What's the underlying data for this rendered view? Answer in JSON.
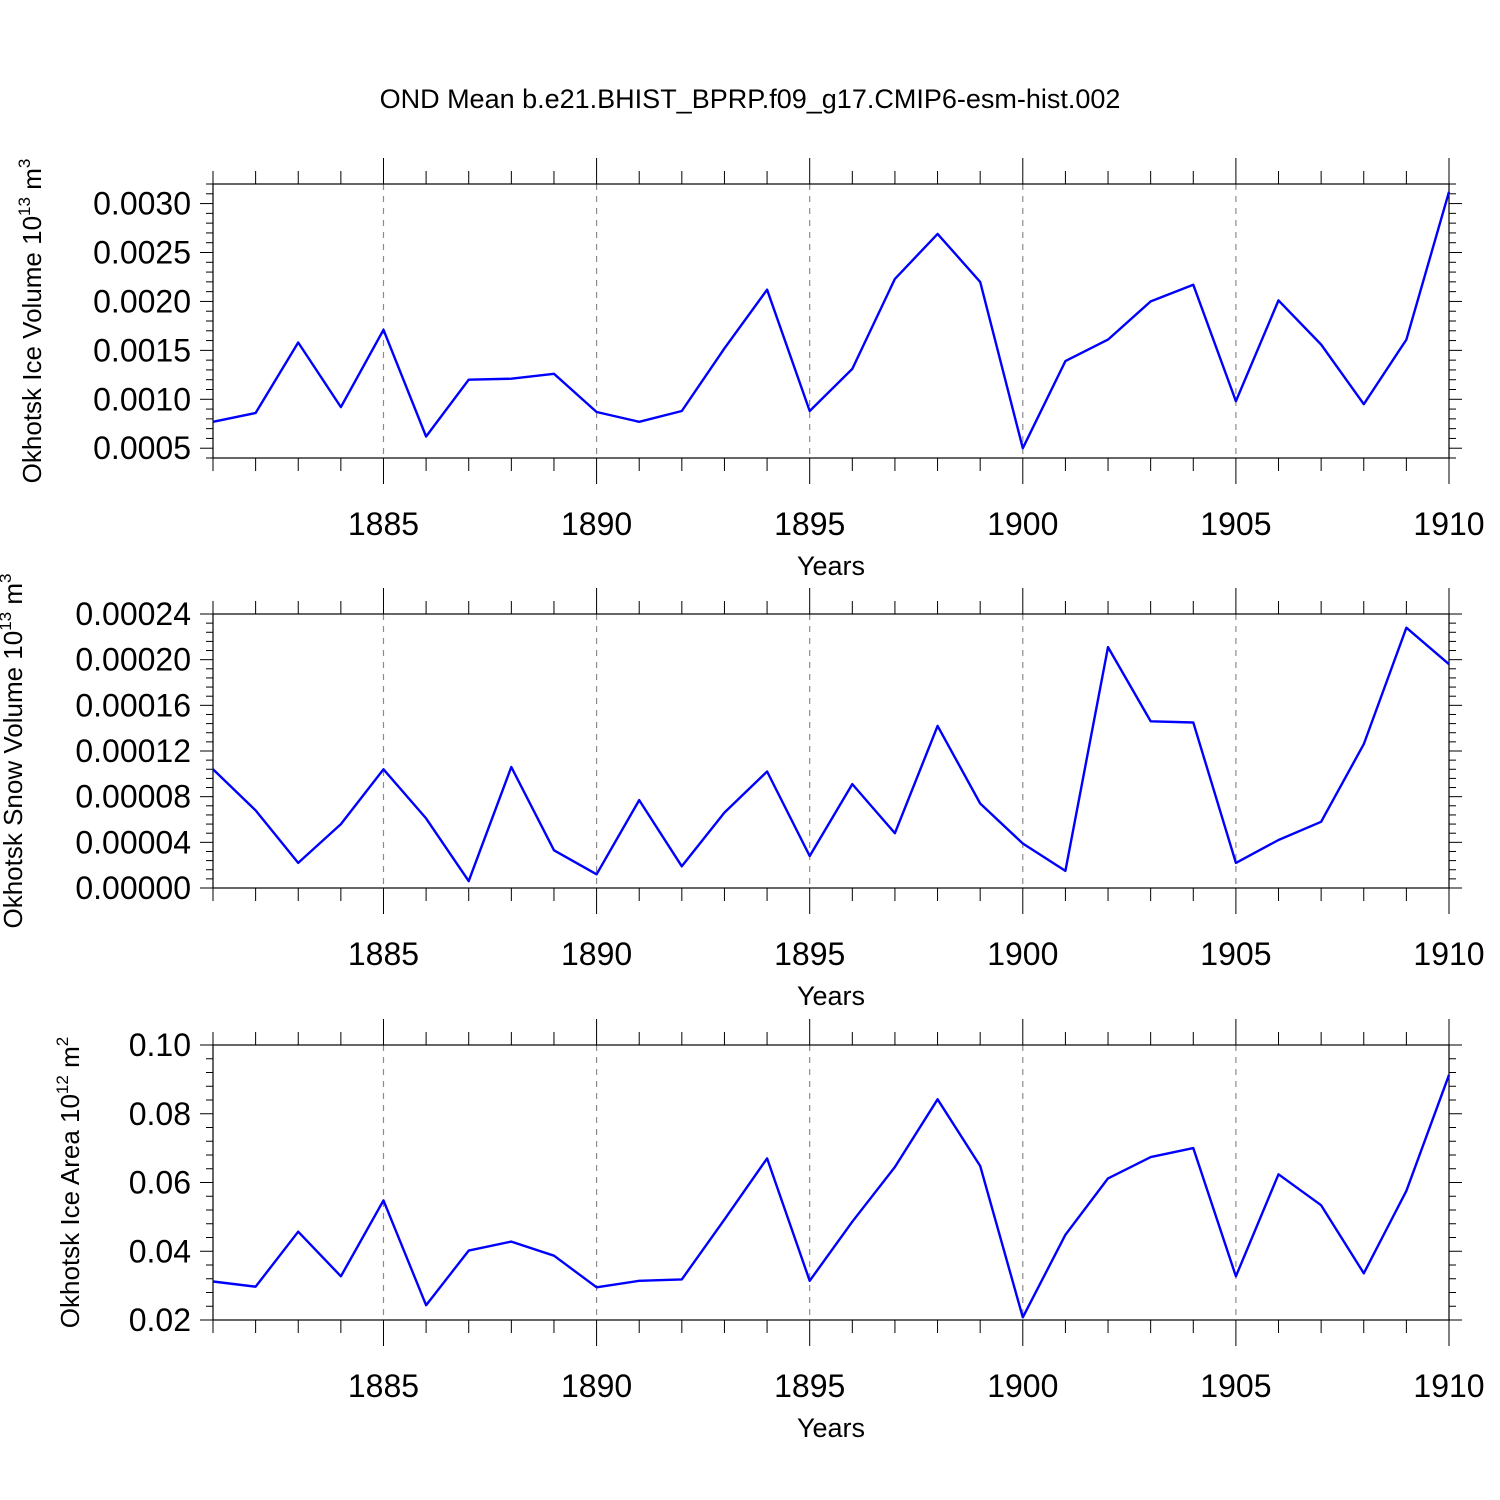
{
  "title": "OND Mean b.e21.BHIST_BPRP.f09_g17.CMIP6-esm-hist.002",
  "colors": {
    "line": "#0000ff",
    "axis": "#000000",
    "grid": "#8c8c8c"
  },
  "chart_data": [
    {
      "type": "line",
      "title": "OND Mean b.e21.BHIST_BPRP.f09_g17.CMIP6-esm-hist.002",
      "ylabel": {
        "text": "Okhotsk Ice Volume 10",
        "sup": "13",
        "unit": " m",
        "unit_sup": "3"
      },
      "xlabel": "Years",
      "xlim": [
        1881,
        1910
      ],
      "ylim": [
        0.0004,
        0.0032
      ],
      "grid": "vertical dashed at major x ticks",
      "xticks": [
        1885,
        1890,
        1895,
        1900,
        1905,
        1910
      ],
      "xtick_labels": [
        "1885",
        "1890",
        "1895",
        "1900",
        "1905",
        "1910"
      ],
      "yticks": [
        0.0005,
        0.001,
        0.0015,
        0.002,
        0.0025,
        0.003
      ],
      "ytick_labels": [
        "0.0005",
        "0.0010",
        "0.0015",
        "0.0020",
        "0.0025",
        "0.0030"
      ],
      "x": [
        1881,
        1882,
        1883,
        1884,
        1885,
        1886,
        1887,
        1888,
        1889,
        1890,
        1891,
        1892,
        1893,
        1894,
        1895,
        1896,
        1897,
        1898,
        1899,
        1900,
        1901,
        1902,
        1903,
        1904,
        1905,
        1906,
        1907,
        1908,
        1909,
        1910
      ],
      "series": [
        {
          "name": "Okhotsk Ice Volume",
          "values": [
            0.00077,
            0.00086,
            0.00158,
            0.00092,
            0.00171,
            0.00062,
            0.0012,
            0.00121,
            0.00126,
            0.00087,
            0.00077,
            0.00088,
            0.00152,
            0.00212,
            0.00088,
            0.00131,
            0.00223,
            0.00269,
            0.0022,
            0.0005,
            0.00139,
            0.00161,
            0.002,
            0.00217,
            0.00098,
            0.00201,
            0.00156,
            0.00095,
            0.00161,
            0.00312
          ]
        }
      ]
    },
    {
      "type": "line",
      "ylabel": {
        "text": "Okhotsk Snow Volume 10",
        "sup": "13",
        "unit": " m",
        "unit_sup": "3"
      },
      "xlabel": "Years",
      "xlim": [
        1881,
        1910
      ],
      "ylim": [
        0.0,
        0.00024
      ],
      "grid": "vertical dashed at major x ticks",
      "xticks": [
        1885,
        1890,
        1895,
        1900,
        1905,
        1910
      ],
      "xtick_labels": [
        "1885",
        "1890",
        "1895",
        "1900",
        "1905",
        "1910"
      ],
      "yticks": [
        0.0,
        4e-05,
        8e-05,
        0.00012,
        0.00016,
        0.0002,
        0.00024
      ],
      "ytick_labels": [
        "0.00000",
        "0.00004",
        "0.00008",
        "0.00012",
        "0.00016",
        "0.00020",
        "0.00024"
      ],
      "x": [
        1881,
        1882,
        1883,
        1884,
        1885,
        1886,
        1887,
        1888,
        1889,
        1890,
        1891,
        1892,
        1893,
        1894,
        1895,
        1896,
        1897,
        1898,
        1899,
        1900,
        1901,
        1902,
        1903,
        1904,
        1905,
        1906,
        1907,
        1908,
        1909,
        1910
      ],
      "series": [
        {
          "name": "Okhotsk Snow Volume",
          "values": [
            0.000104,
            6.8e-05,
            2.2e-05,
            5.6e-05,
            0.000104,
            6.1e-05,
            6e-06,
            0.000106,
            3.3e-05,
            1.2e-05,
            7.7e-05,
            1.9e-05,
            6.6e-05,
            0.000102,
            2.8e-05,
            9.1e-05,
            4.8e-05,
            0.000142,
            7.4e-05,
            3.9e-05,
            1.5e-05,
            0.000211,
            0.000146,
            0.000145,
            2.2e-05,
            4.2e-05,
            5.8e-05,
            0.000126,
            0.000228,
            0.000196
          ]
        }
      ]
    },
    {
      "type": "line",
      "ylabel": {
        "text": "Okhotsk Ice Area 10",
        "sup": "12",
        "unit": " m",
        "unit_sup": "2"
      },
      "xlabel": "Years",
      "xlim": [
        1881,
        1910
      ],
      "ylim": [
        0.02,
        0.1
      ],
      "grid": "vertical dashed at major x ticks",
      "xticks": [
        1885,
        1890,
        1895,
        1900,
        1905,
        1910
      ],
      "xtick_labels": [
        "1885",
        "1890",
        "1895",
        "1900",
        "1905",
        "1910"
      ],
      "yticks": [
        0.02,
        0.04,
        0.06,
        0.08,
        0.1
      ],
      "ytick_labels": [
        "0.02",
        "0.04",
        "0.06",
        "0.08",
        "0.10"
      ],
      "x": [
        1881,
        1882,
        1883,
        1884,
        1885,
        1886,
        1887,
        1888,
        1889,
        1890,
        1891,
        1892,
        1893,
        1894,
        1895,
        1896,
        1897,
        1898,
        1899,
        1900,
        1901,
        1902,
        1903,
        1904,
        1905,
        1906,
        1907,
        1908,
        1909,
        1910
      ],
      "series": [
        {
          "name": "Okhotsk Ice Area",
          "values": [
            0.0312,
            0.0297,
            0.0457,
            0.0327,
            0.0548,
            0.0243,
            0.0402,
            0.0428,
            0.0387,
            0.0295,
            0.0314,
            0.0318,
            0.0492,
            0.067,
            0.0314,
            0.0486,
            0.0645,
            0.0842,
            0.0648,
            0.0208,
            0.0448,
            0.0612,
            0.0674,
            0.07,
            0.0327,
            0.0624,
            0.0534,
            0.0336,
            0.0576,
            0.0913
          ]
        }
      ]
    }
  ]
}
